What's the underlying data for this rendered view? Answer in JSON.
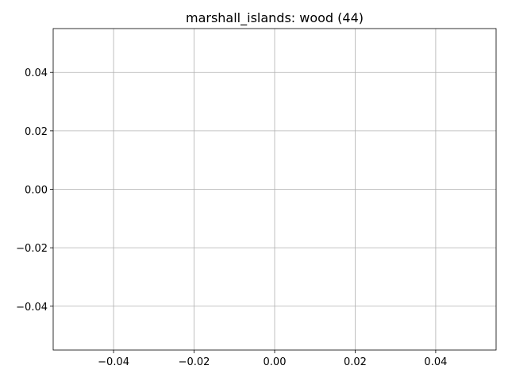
{
  "chart_data": {
    "type": "line",
    "title": "marshall_islands: wood (44)",
    "xlabel": "",
    "ylabel": "",
    "series": [],
    "xlim": [
      -0.055,
      0.055
    ],
    "ylim": [
      -0.055,
      0.055
    ],
    "xticks": [
      -0.04,
      -0.02,
      0.0,
      0.02,
      0.04
    ],
    "xtick_labels": [
      "−0.04",
      "−0.02",
      "0.00",
      "0.02",
      "0.04"
    ],
    "yticks": [
      -0.04,
      -0.02,
      0.0,
      0.02,
      0.04
    ],
    "ytick_labels": [
      "−0.04",
      "−0.02",
      "0.00",
      "0.02",
      "0.04"
    ],
    "grid": true,
    "colors": {
      "grid": "#b0b0b0",
      "axes": "#000000",
      "background": "#ffffff"
    }
  }
}
